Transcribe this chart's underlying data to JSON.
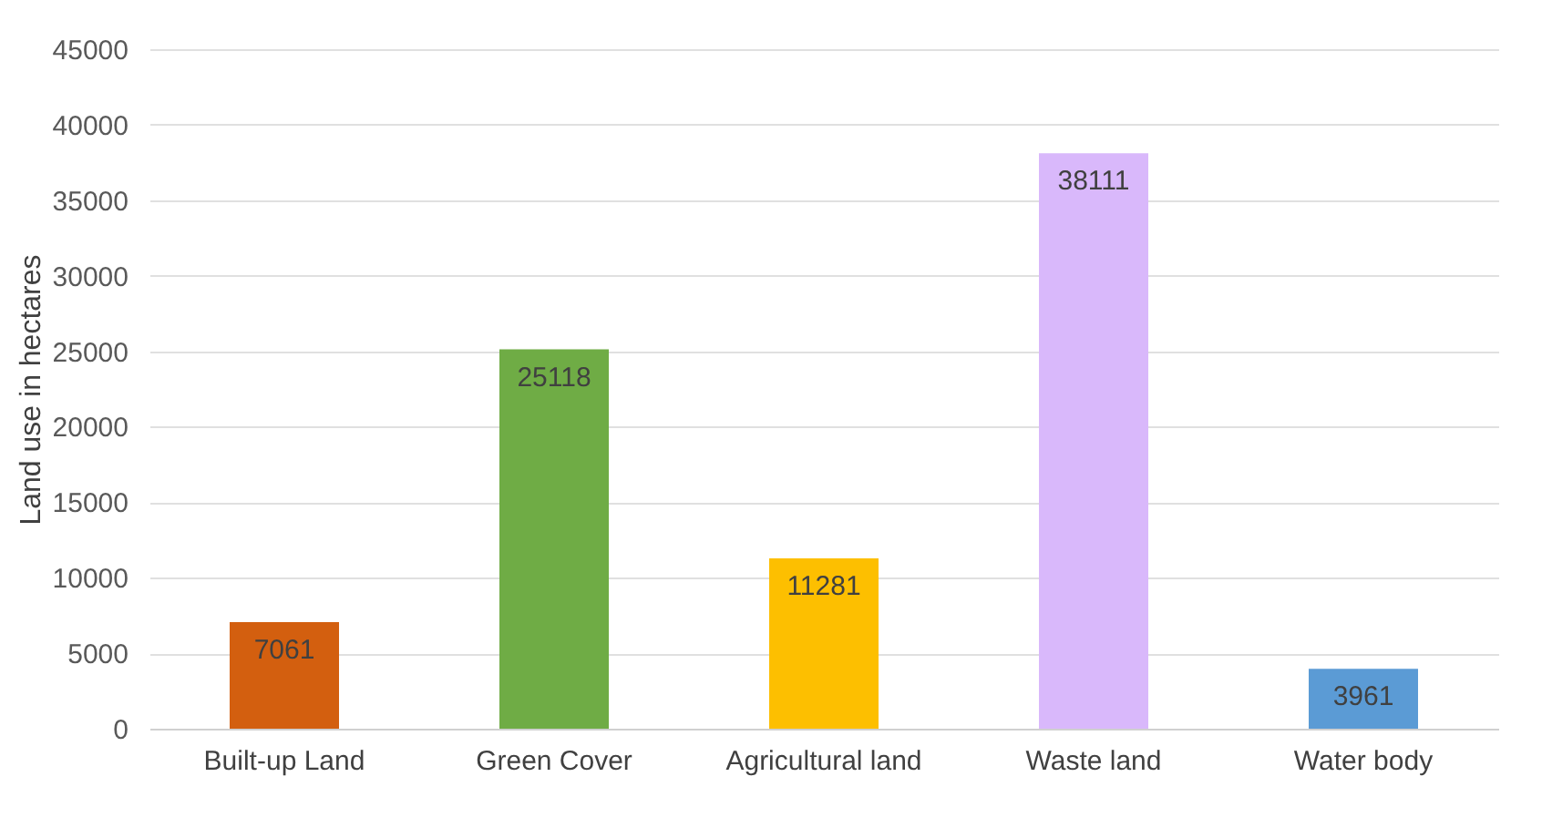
{
  "chart_data": {
    "type": "bar",
    "ylabel": "Land use in hectares",
    "categories": [
      "Built-up Land",
      "Green Cover",
      "Agricultural land",
      "Waste land",
      "Water body"
    ],
    "values": [
      7061,
      25118,
      11281,
      38111,
      3961
    ],
    "colors": [
      "#d35f0f",
      "#6fac45",
      "#fdbf00",
      "#d9b8fb",
      "#5b9bd5"
    ],
    "ylim": [
      0,
      45000
    ],
    "yticks": [
      0,
      5000,
      10000,
      15000,
      20000,
      25000,
      30000,
      35000,
      40000,
      45000
    ],
    "grid": "y",
    "data_labels": true
  }
}
